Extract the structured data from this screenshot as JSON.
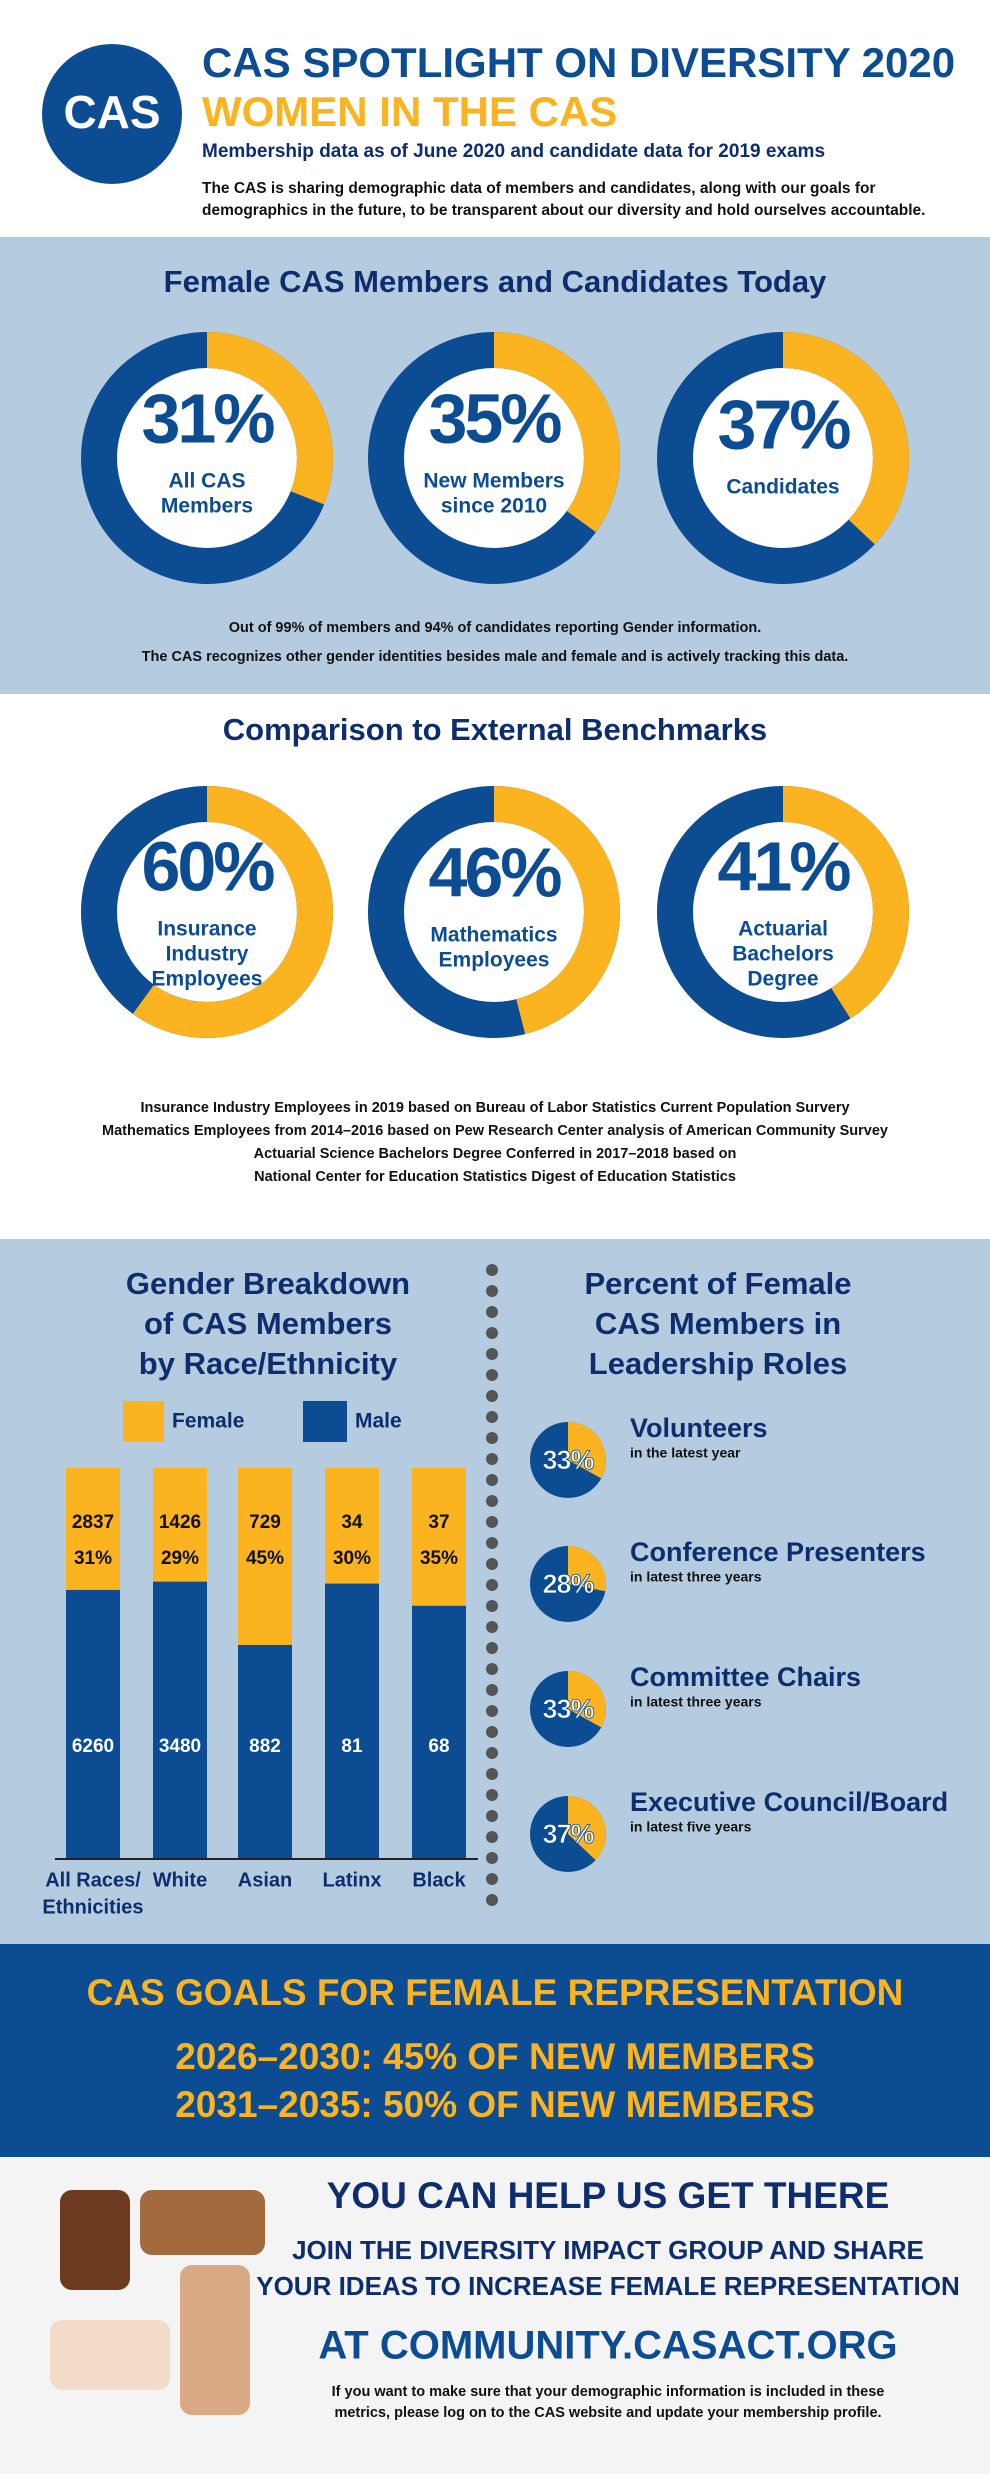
{
  "header": {
    "logo": "CAS",
    "title": "CAS SPOTLIGHT ON DIVERSITY 2020",
    "subtitle": "WOMEN IN THE CAS",
    "date_note": "Membership data as of June 2020 and candidate data for 2019 exams",
    "intro": [
      "The CAS is sharing demographic data of members and candidates, along with our goals for",
      "demographics in the future, to be transparent about our diversity and hold ourselves accountable."
    ]
  },
  "today": {
    "heading": "Female CAS Members and Candidates Today",
    "donuts": [
      {
        "value": 31,
        "label": "31%",
        "caption": [
          "All CAS",
          "Members"
        ]
      },
      {
        "value": 35,
        "label": "35%",
        "caption": [
          "New Members",
          "since 2010"
        ]
      },
      {
        "value": 37,
        "label": "37%",
        "caption": [
          "Candidates"
        ]
      }
    ],
    "notes": [
      "Out of 99% of members and 94% of candidates reporting Gender information.",
      "The CAS recognizes other gender identities besides male and female and is actively tracking this data."
    ]
  },
  "benchmarks": {
    "heading": "Comparison to External Benchmarks",
    "donuts": [
      {
        "value": 60,
        "label": "60%",
        "caption": [
          "Insurance",
          "Industry",
          "Employees"
        ]
      },
      {
        "value": 46,
        "label": "46%",
        "caption": [
          "Mathematics",
          "Employees"
        ]
      },
      {
        "value": 41,
        "label": "41%",
        "caption": [
          "Actuarial",
          "Bachelors",
          "Degree"
        ]
      }
    ],
    "notes": [
      "Insurance Industry Employees in 2019 based on Bureau of Labor Statistics Current Population Survery",
      "Mathematics Employees from 2014–2016 based on Pew Research Center analysis of American Community Survey",
      "Actuarial Science Bachelors Degree Conferred in 2017–2018 based on",
      "National Center for Education Statistics Digest of Education Statistics"
    ]
  },
  "race": {
    "heading": [
      "Gender Breakdown",
      "of CAS Members",
      "by Race/Ethnicity"
    ],
    "legend": {
      "female": "Female",
      "male": "Male"
    },
    "categories": [
      [
        "All Races/",
        "Ethnicities"
      ],
      [
        "White"
      ],
      [
        "Asian"
      ],
      [
        "Latinx"
      ],
      [
        "Black"
      ]
    ],
    "female": [
      2837,
      1426,
      729,
      34,
      37
    ],
    "female_percent": [
      "31%",
      "29%",
      "45%",
      "30%",
      "35%"
    ],
    "male": [
      6260,
      3480,
      882,
      81,
      68
    ]
  },
  "leadership": {
    "heading": [
      "Percent of Female",
      "CAS Members in",
      "Leadership Roles"
    ],
    "items": [
      {
        "value": 33,
        "label": "33%",
        "title": "Volunteers",
        "note": "in the latest year"
      },
      {
        "value": 28,
        "label": "28%",
        "title": "Conference Presenters",
        "note": "in latest three years"
      },
      {
        "value": 33,
        "label": "33%",
        "title": "Committee Chairs",
        "note": "in latest three years"
      },
      {
        "value": 37,
        "label": "37%",
        "title": "Executive Council/Board",
        "note": "in latest five years"
      }
    ]
  },
  "goals": {
    "heading": "CAS GOALS FOR FEMALE REPRESENTATION",
    "lines": [
      "2026–2030: 45% OF NEW MEMBERS",
      "2031–2035: 50% OF NEW MEMBERS"
    ]
  },
  "help": {
    "heading": "YOU CAN HELP US GET THERE",
    "lines": [
      "JOIN THE DIVERSITY IMPACT GROUP AND SHARE",
      "YOUR IDEAS TO INCREASE FEMALE REPRESENTATION"
    ],
    "url": "AT COMMUNITY.CASACT.ORG",
    "footnote": [
      "If you want to make sure that your demographic information is included in these",
      "metrics, please log on to the CAS website and update your membership profile."
    ]
  }
}
